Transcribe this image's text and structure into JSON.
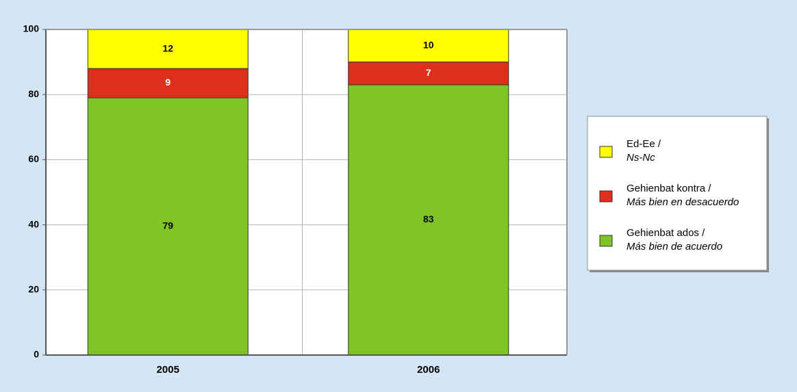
{
  "chart_data": {
    "type": "stacked_bar",
    "categories": [
      "2005",
      "2006"
    ],
    "series": [
      {
        "name": [
          "Gehienbat ados /",
          "Más bien de acuerdo"
        ],
        "color": "#7fc427",
        "label_color": "#000000",
        "values": [
          79,
          83
        ]
      },
      {
        "name": [
          "Gehienbat kontra /",
          "Más bien en desacuerdo"
        ],
        "color": "#dd2f1c",
        "label_color": "#ffffff",
        "values": [
          9,
          7
        ]
      },
      {
        "name": [
          "Ed-Ee /",
          "Ns-Nc"
        ],
        "color": "#ffff00",
        "label_color": "#000000",
        "values": [
          12,
          10
        ]
      }
    ],
    "ylim": [
      0,
      100
    ],
    "yticks": [
      0,
      20,
      40,
      60,
      80,
      100
    ],
    "grid": true,
    "legend": "right"
  }
}
